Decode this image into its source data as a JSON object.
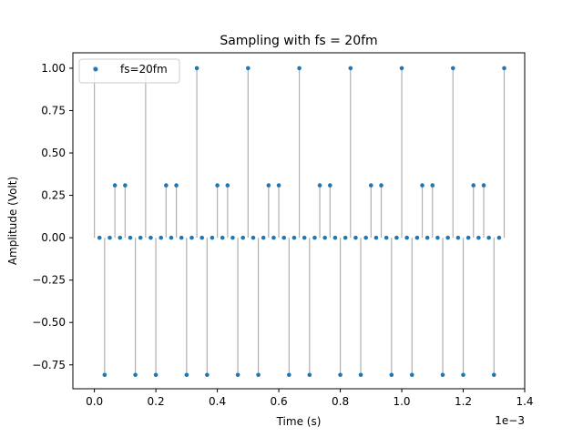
{
  "chart_data": {
    "type": "scatter",
    "title": "Sampling with fs = 20fm",
    "xlabel": "Time (s)",
    "ylabel": "Amplitude (Volt)",
    "x_offset_label": "1e−3",
    "xlim": [
      -7e-05,
      0.0014
    ],
    "ylim": [
      -0.8909,
      1.0909
    ],
    "xticks": [
      0,
      0.0002,
      0.0004,
      0.0006,
      0.0008,
      0.001,
      0.0012,
      0.0014
    ],
    "xtick_labels": [
      "0.0",
      "0.2",
      "0.4",
      "0.6",
      "0.8",
      "1.0",
      "1.2",
      "1.4"
    ],
    "yticks": [
      -0.75,
      -0.5,
      -0.25,
      0.0,
      0.25,
      0.5,
      0.75,
      1.0
    ],
    "ytick_labels": [
      "−0.75",
      "−0.50",
      "−0.25",
      "0.00",
      "0.25",
      "0.50",
      "0.75",
      "1.00"
    ],
    "grid": false,
    "legend_position": "top-left",
    "series": [
      {
        "name": "fs=20fm",
        "color": "#1f77b4",
        "stem_color": "#b0b0b0",
        "x": [
          0.0,
          1.67e-05,
          3.33e-05,
          5e-05,
          6.67e-05,
          8.33e-05,
          0.0001,
          0.0001167,
          0.0001333,
          0.00015,
          0.0001667,
          0.0001833,
          0.0002,
          0.0002167,
          0.0002333,
          0.00025,
          0.0002667,
          0.0002833,
          0.0003,
          0.0003167,
          0.0003333,
          0.00035,
          0.0003667,
          0.0003833,
          0.0004,
          0.0004167,
          0.0004333,
          0.00045,
          0.0004667,
          0.0004833,
          0.0005,
          0.0005167,
          0.0005333,
          0.00055,
          0.0005667,
          0.0005833,
          0.0006,
          0.0006167,
          0.0006333,
          0.00065,
          0.0006667,
          0.0006833,
          0.0007,
          0.0007167,
          0.0007333,
          0.00075,
          0.0007667,
          0.0007833,
          0.0008,
          0.0008167,
          0.0008333,
          0.00085,
          0.0008667,
          0.0008833,
          0.0009,
          0.0009167,
          0.0009333,
          0.00095,
          0.0009667,
          0.0009833,
          0.001,
          0.0010167,
          0.0010333,
          0.00105,
          0.0010667,
          0.0010833,
          0.0011,
          0.0011167,
          0.0011333,
          0.00115,
          0.0011667,
          0.0011833,
          0.0012,
          0.0012167,
          0.0012333,
          0.00125,
          0.0012667,
          0.0012833,
          0.0013,
          0.0013167,
          0.0013333
        ],
        "y": [
          1.0,
          0.0,
          -0.809,
          0.0,
          0.309,
          0.0,
          0.309,
          0.0,
          -0.809,
          0.0,
          1.0,
          0.0,
          -0.809,
          0.0,
          0.309,
          0.0,
          0.309,
          0.0,
          -0.809,
          0.0,
          1.0,
          0.0,
          -0.809,
          0.0,
          0.309,
          0.0,
          0.309,
          0.0,
          -0.809,
          0.0,
          1.0,
          0.0,
          -0.809,
          0.0,
          0.309,
          0.0,
          0.309,
          0.0,
          -0.809,
          0.0,
          1.0,
          0.0,
          -0.809,
          0.0,
          0.309,
          0.0,
          0.309,
          0.0,
          -0.809,
          0.0,
          1.0,
          0.0,
          -0.809,
          0.0,
          0.309,
          0.0,
          0.309,
          0.0,
          -0.809,
          0.0,
          1.0,
          0.0,
          -0.809,
          0.0,
          0.309,
          0.0,
          0.309,
          0.0,
          -0.809,
          0.0,
          1.0,
          0.0,
          -0.809,
          0.0,
          0.309,
          0.0,
          0.309,
          0.0,
          -0.809,
          0.0,
          1.0
        ]
      }
    ]
  }
}
